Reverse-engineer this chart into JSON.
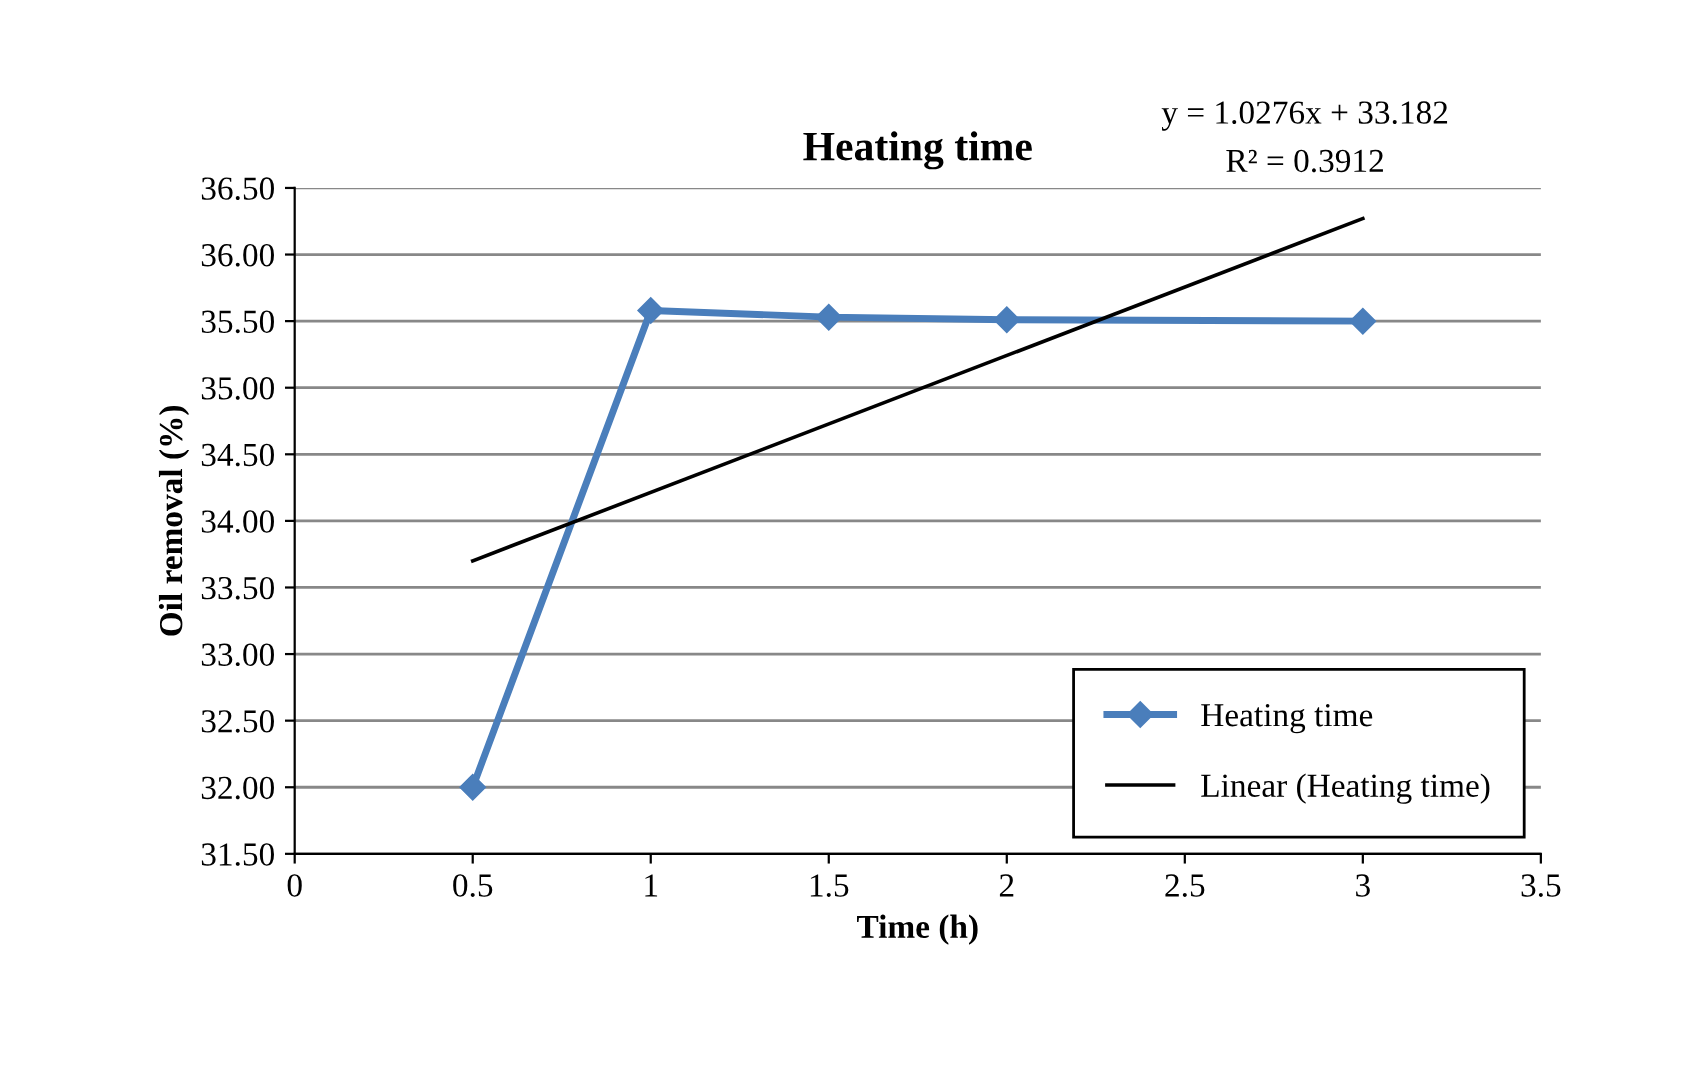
{
  "chart_data": {
    "type": "line",
    "title": "Heating time",
    "xlabel": "Time (h)",
    "ylabel": "Oil removal (%)",
    "x": [
      0.5,
      1,
      1.5,
      2,
      3
    ],
    "series": [
      {
        "name": "Heating time",
        "color": "#4a7ebb",
        "values": [
          32.0,
          35.58,
          35.53,
          35.51,
          35.5
        ],
        "marker": "diamond"
      },
      {
        "name": "Linear (Heating time)",
        "type": "line",
        "color": "#000000",
        "x": [
          0.5,
          3
        ],
        "values": [
          33.7,
          36.27
        ],
        "marker": "none"
      }
    ],
    "annotations": [
      "y = 1.0276x + 33.182",
      "R² = 0.3912"
    ],
    "xlim": [
      0,
      3.5
    ],
    "xticks": [
      0,
      0.5,
      1,
      1.5,
      2,
      2.5,
      3,
      3.5
    ],
    "ylim": [
      31.5,
      36.5
    ],
    "yticks": [
      {
        "value": 31.5,
        "label": "31.50"
      },
      {
        "value": 32,
        "label": "32.00"
      },
      {
        "value": 32.5,
        "label": "32.50"
      },
      {
        "value": 33,
        "label": "33.00"
      },
      {
        "value": 33.5,
        "label": "33.50"
      },
      {
        "value": 34,
        "label": "34.00"
      },
      {
        "value": 34.5,
        "label": "34.50"
      },
      {
        "value": 35,
        "label": "35.00"
      },
      {
        "value": 35.5,
        "label": "35.50"
      },
      {
        "value": 36,
        "label": "36.00"
      },
      {
        "value": 36.5,
        "label": "36.50"
      }
    ],
    "grid": "y",
    "legend": "bottom right",
    "line_style": "solid"
  }
}
